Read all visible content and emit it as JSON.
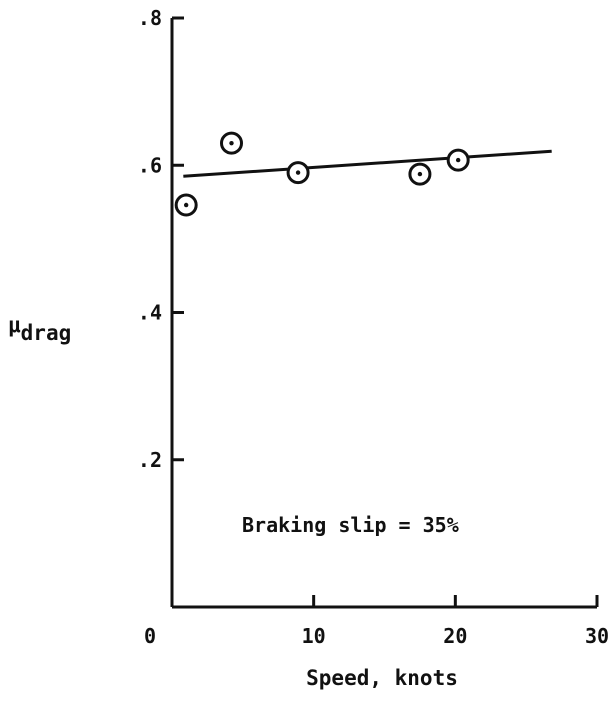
{
  "chart_data": {
    "type": "scatter",
    "xlabel": "Speed, knots",
    "ylabel": {
      "symbol": "μ",
      "subscript": "drag"
    },
    "xlim": [
      0,
      30
    ],
    "ylim": [
      0,
      0.8
    ],
    "x_ticks": [
      {
        "value": 0,
        "label": "0"
      },
      {
        "value": 10,
        "label": "10"
      },
      {
        "value": 20,
        "label": "20"
      },
      {
        "value": 30,
        "label": "30"
      }
    ],
    "y_ticks": [
      {
        "value": 0.2,
        "label": ".2"
      },
      {
        "value": 0.4,
        "label": ".4"
      },
      {
        "value": 0.6,
        "label": ".6"
      },
      {
        "value": 0.8,
        "label": ".8"
      }
    ],
    "annotation": "Braking slip = 35%",
    "grid": false,
    "series": [
      {
        "marker": "circle-dot",
        "points": [
          {
            "x": 1.0,
            "y": 0.546
          },
          {
            "x": 4.2,
            "y": 0.63
          },
          {
            "x": 8.9,
            "y": 0.59
          },
          {
            "x": 17.5,
            "y": 0.588
          },
          {
            "x": 20.2,
            "y": 0.607
          }
        ]
      }
    ],
    "fit_line": [
      {
        "x": 0.8,
        "y": 0.585
      },
      {
        "x": 26.8,
        "y": 0.619
      }
    ]
  }
}
